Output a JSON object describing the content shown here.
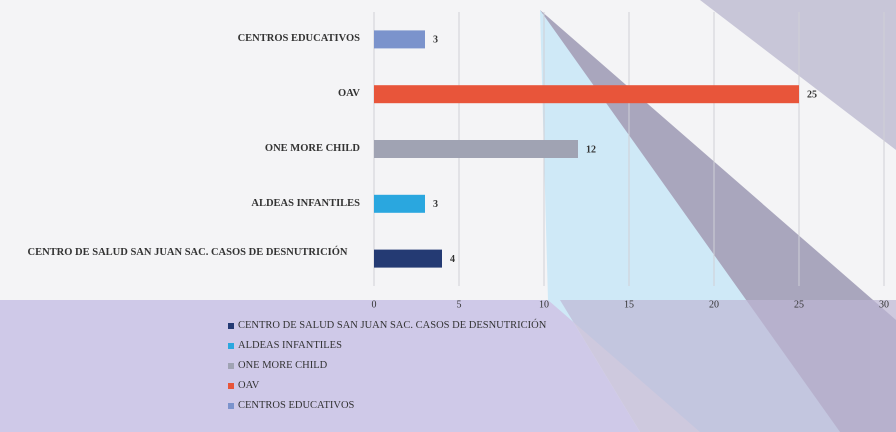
{
  "chart_data": {
    "type": "bar",
    "orientation": "horizontal",
    "categories": [
      "CENTRO DE SALUD SAN JUAN SAC. CASOS DE DESNUTRICIÓN",
      "ALDEAS INFANTILES",
      "ONE MORE CHILD",
      "OAV",
      "CENTROS EDUCATIVOS"
    ],
    "values": [
      4,
      3,
      12,
      25,
      3
    ],
    "colors": [
      "#243a73",
      "#2aa7df",
      "#a0a3b3",
      "#e8553a",
      "#7b93cc"
    ],
    "xlim": [
      0,
      30
    ],
    "xticks": [
      0,
      5,
      10,
      15,
      20,
      25,
      30
    ],
    "grid": true
  }
}
